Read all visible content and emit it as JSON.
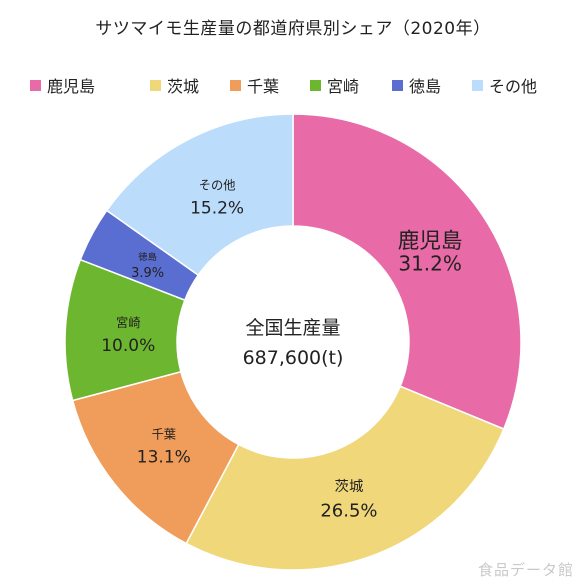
{
  "chart_data": {
    "type": "pie",
    "title": "サツマイモ生産量の都道府県別シェア（2020年）",
    "categories": [
      "鹿児島",
      "茨城",
      "千葉",
      "宮崎",
      "徳島",
      "その他"
    ],
    "values": [
      31.2,
      26.5,
      13.1,
      10.0,
      3.9,
      15.2
    ],
    "value_labels": [
      "31.2%",
      "26.5%",
      "13.1%",
      "10.0%",
      "3.9%",
      "15.2%"
    ],
    "colors": [
      "#e86aa6",
      "#efd77a",
      "#f09c5a",
      "#6db62f",
      "#5a6dd0",
      "#bcdcfb"
    ],
    "legend_position": "top",
    "center_text": [
      "全国生産量",
      "687,600(t)"
    ]
  },
  "watermark": "食品データ館"
}
